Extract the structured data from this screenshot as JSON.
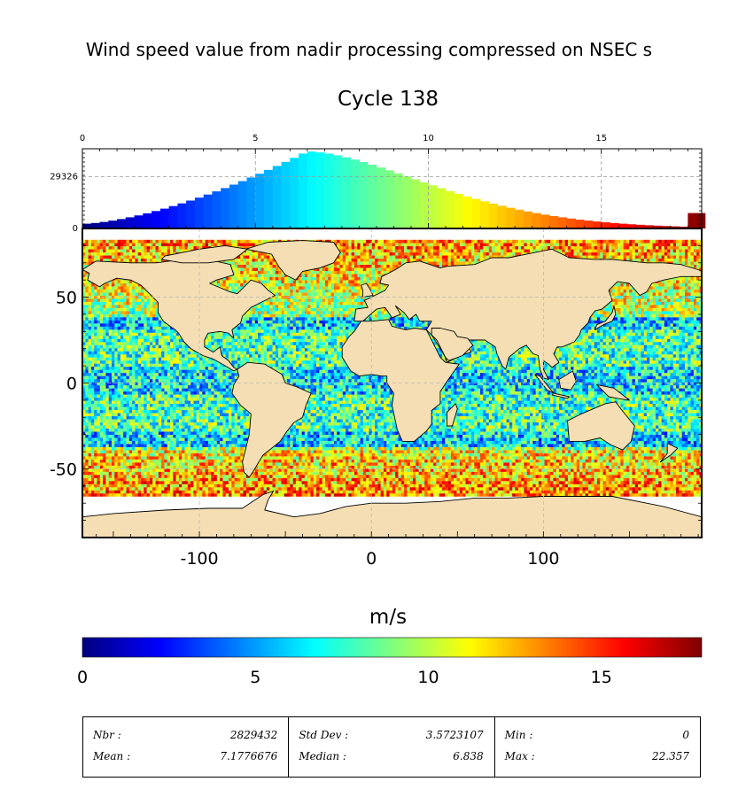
{
  "title": "Wind speed value from nadir processing compressed on NSEC s",
  "subtitle": "Cycle 138",
  "colorbar_label": "m/s",
  "colors": {
    "land": "#f5deb3",
    "colormap": [
      "#00007f",
      "#0000ff",
      "#007fff",
      "#00ffff",
      "#7fff7f",
      "#ffff00",
      "#ff7f00",
      "#ff0000",
      "#7f0000"
    ]
  },
  "chart_data": [
    {
      "type": "bar",
      "name": "histogram",
      "x_ticks": [
        0,
        5,
        10,
        15
      ],
      "xlim": [
        0,
        17.9
      ],
      "y_ticks": [
        0,
        29326
      ],
      "ylim": [
        0,
        45000
      ],
      "y_max_value": 43500,
      "grid": true
    },
    {
      "type": "heatmap",
      "name": "map",
      "x_ticks": [
        -100,
        0,
        100
      ],
      "y_ticks": [
        50,
        0,
        -50
      ],
      "xlim": [
        -168,
        192
      ],
      "ylim": [
        -90,
        90
      ],
      "value_range": [
        0,
        17.9
      ],
      "grid": true
    },
    {
      "type": "colorbar",
      "ticks": [
        0,
        5,
        10,
        15
      ],
      "range": [
        0,
        17.9
      ]
    }
  ],
  "stats": [
    [
      {
        "label": "Nbr :",
        "value": "2829432"
      },
      {
        "label": "Mean :",
        "value": "7.1776676"
      }
    ],
    [
      {
        "label": "Std Dev :",
        "value": "3.5723107"
      },
      {
        "label": "Median :",
        "value": "6.838"
      }
    ],
    [
      {
        "label": "Min :",
        "value": "0"
      },
      {
        "label": "Max :",
        "value": "22.357"
      }
    ]
  ]
}
